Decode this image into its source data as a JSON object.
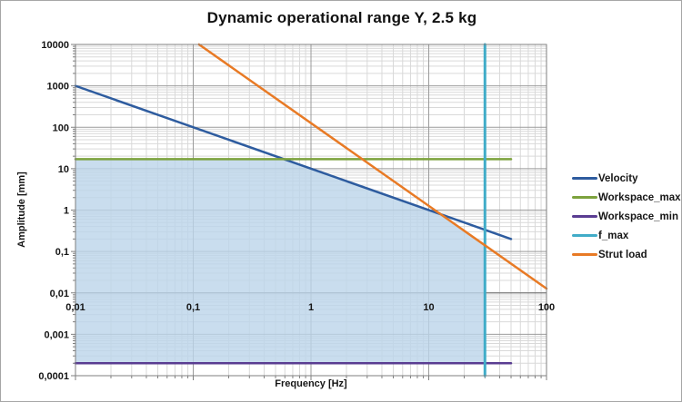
{
  "window": {
    "background": "#ffffff",
    "border_color": "#a6a6a6"
  },
  "chart_data": {
    "type": "line",
    "title": "Dynamic operational range Y, 2.5 kg",
    "xlabel": "Frequency [Hz]",
    "ylabel": "Amplitude [mm]",
    "x_scale": "log",
    "y_scale": "log",
    "xlim": [
      0.01,
      100
    ],
    "ylim": [
      0.0001,
      10000
    ],
    "grid": "log major and minor, both axes",
    "legend_position": "right",
    "x_ticks": [
      {
        "value": 0.01,
        "label": "0,01"
      },
      {
        "value": 0.1,
        "label": "0,1"
      },
      {
        "value": 1,
        "label": "1"
      },
      {
        "value": 10,
        "label": "10"
      },
      {
        "value": 100,
        "label": "100"
      }
    ],
    "y_ticks": [
      {
        "value": 10000,
        "label": "10000"
      },
      {
        "value": 1000,
        "label": "1000"
      },
      {
        "value": 100,
        "label": "100"
      },
      {
        "value": 10,
        "label": "10"
      },
      {
        "value": 1,
        "label": "1"
      },
      {
        "value": 0.1,
        "label": "0,1"
      },
      {
        "value": 0.01,
        "label": "0,01"
      },
      {
        "value": 0.001,
        "label": "0,001"
      },
      {
        "value": 0.0001,
        "label": "0,0001"
      }
    ],
    "series": [
      {
        "name": "Velocity",
        "color": "#2E5C9F",
        "slope_decades_per_decade": -1,
        "points": [
          [
            0.01,
            1000
          ],
          [
            50,
            0.2
          ]
        ]
      },
      {
        "name": "Workspace_max",
        "color": "#7CA23D",
        "slope_decades_per_decade": 0,
        "points": [
          [
            0.01,
            17
          ],
          [
            50,
            17
          ]
        ]
      },
      {
        "name": "Workspace_min",
        "color": "#5A3D92",
        "slope_decades_per_decade": 0,
        "points": [
          [
            0.01,
            0.0002
          ],
          [
            50,
            0.0002
          ]
        ]
      },
      {
        "name": "f_max",
        "color": "#41ACC8",
        "orientation": "vertical",
        "points": [
          [
            30,
            0.0001
          ],
          [
            30,
            10000
          ]
        ]
      },
      {
        "name": "Strut load",
        "color": "#E87A25",
        "slope_decades_per_decade": -2,
        "points": [
          [
            0.112,
            10000
          ],
          [
            100,
            0.0127
          ]
        ]
      }
    ],
    "shaded_region": {
      "description": "operational range: below min(Velocity, Workspace_max, Strut load), above Workspace_min, left of f_max",
      "x_min": 0.01,
      "x_max": 30,
      "y_min": 0.0002,
      "upper_bound_series": [
        "Velocity",
        "Workspace_max",
        "Strut load"
      ],
      "fill": "#BCD4EA",
      "opacity": 0.8
    },
    "grid_colors": {
      "major": "#9b9b9b",
      "minor": "#d9d9d9",
      "axis": "#7f7f7f"
    }
  }
}
